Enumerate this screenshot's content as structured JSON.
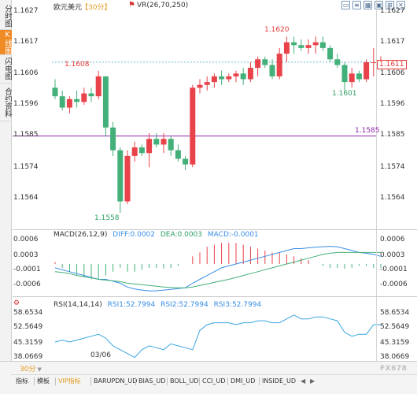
{
  "sidebar": {
    "tabs": [
      {
        "label": "分时图",
        "active": false
      },
      {
        "label": "K线图",
        "active": true
      },
      {
        "label": "闪电图",
        "active": false
      },
      {
        "label": "合约资料",
        "active": false
      }
    ]
  },
  "header": {
    "symbol": "欧元美元",
    "period": "【30分】",
    "vr_icon": "indicator-flag-icon",
    "vr_label": "VR(26,70,250)"
  },
  "window_icons": [
    "window-restore-icon",
    "window-list-icon",
    "window-grid-icon",
    "window-tile-icon",
    "window-more-icon",
    "window-close-icon"
  ],
  "price_axis": {
    "labels": [
      "1.1627",
      "1.1617",
      "1.1606",
      "1.1596",
      "1.1585",
      "1.1574",
      "1.1564"
    ],
    "current_price": "1.1611",
    "level_line": "1.1585",
    "annotations": {
      "high": "1.1620",
      "local_high": "1.1608",
      "local_low": "1.1601",
      "low": "1.1558"
    }
  },
  "macd": {
    "title": "MACD(26,12,9)",
    "diff": "DIFF:0.0002",
    "dea": "DEA:0.0003",
    "macd": "MACD:-0.0001",
    "axis_labels": [
      "0.0006",
      "0.0003",
      "-0.0001",
      "-0.0006"
    ]
  },
  "rsi": {
    "title": "RSI(14,14,14)",
    "rsi1": "RSI1:52.7994",
    "rsi2": "RSI2:52.7994",
    "rsi3": "RSI3:52.7994",
    "axis_labels": [
      "58.6534",
      "52.5649",
      "45.3159",
      "38.0669"
    ],
    "settings_icon": "gear-icon"
  },
  "x_axis": {
    "date_label": "03/06"
  },
  "toolbar": {
    "period_button": "30分",
    "tabs": [
      "指标",
      "模板",
      "VIP指标",
      "BARUPDN_UD",
      "BIAS_UD",
      "BOLL_UD",
      "CCI_UD",
      "DMI_UD",
      "INSIDE_UD"
    ],
    "scroll_icons": [
      "arrow-left-icon",
      "arrow-right-icon"
    ]
  },
  "watermark": "FX678",
  "colors": {
    "up": "#e8424a",
    "down": "#43b07a",
    "accent": "#f08a24",
    "level": "#8e24aa",
    "current": "#3aa0c8"
  },
  "chart_data": [
    {
      "type": "candlestick",
      "title": "",
      "ylim": [
        1.1553,
        1.1629
      ],
      "y_ticks": [
        1.1627,
        1.1617,
        1.1606,
        1.1596,
        1.1585,
        1.1574,
        1.1564
      ],
      "horizontal_lines": [
        {
          "value": 1.1585,
          "label": "1.1585"
        },
        {
          "value": 1.1611,
          "label": "1.1611",
          "style": "dashed"
        }
      ],
      "candles": [
        {
          "o": 1.1602,
          "h": 1.1605,
          "l": 1.1598,
          "c": 1.1599
        },
        {
          "o": 1.1599,
          "h": 1.1601,
          "l": 1.1594,
          "c": 1.1595
        },
        {
          "o": 1.1595,
          "h": 1.1599,
          "l": 1.1593,
          "c": 1.1598
        },
        {
          "o": 1.1598,
          "h": 1.1601,
          "l": 1.1595,
          "c": 1.1597
        },
        {
          "o": 1.1597,
          "h": 1.1602,
          "l": 1.1596,
          "c": 1.16
        },
        {
          "o": 1.16,
          "h": 1.1602,
          "l": 1.1597,
          "c": 1.1599
        },
        {
          "o": 1.1599,
          "h": 1.1608,
          "l": 1.1598,
          "c": 1.1606
        },
        {
          "o": 1.1606,
          "h": 1.1606,
          "l": 1.1585,
          "c": 1.1588
        },
        {
          "o": 1.1588,
          "h": 1.159,
          "l": 1.1578,
          "c": 1.158
        },
        {
          "o": 1.158,
          "h": 1.1581,
          "l": 1.1558,
          "c": 1.1562
        },
        {
          "o": 1.1562,
          "h": 1.158,
          "l": 1.1561,
          "c": 1.1578
        },
        {
          "o": 1.1578,
          "h": 1.1583,
          "l": 1.1576,
          "c": 1.1581
        },
        {
          "o": 1.1581,
          "h": 1.1582,
          "l": 1.1578,
          "c": 1.1579
        },
        {
          "o": 1.1579,
          "h": 1.1586,
          "l": 1.1574,
          "c": 1.1584
        },
        {
          "o": 1.1584,
          "h": 1.1586,
          "l": 1.1581,
          "c": 1.1582
        },
        {
          "o": 1.1582,
          "h": 1.1586,
          "l": 1.1579,
          "c": 1.1584
        },
        {
          "o": 1.1584,
          "h": 1.1585,
          "l": 1.1578,
          "c": 1.158
        },
        {
          "o": 1.158,
          "h": 1.1582,
          "l": 1.1576,
          "c": 1.1577
        },
        {
          "o": 1.1577,
          "h": 1.1578,
          "l": 1.1573,
          "c": 1.1575
        },
        {
          "o": 1.1575,
          "h": 1.1603,
          "l": 1.1574,
          "c": 1.1602
        },
        {
          "o": 1.1602,
          "h": 1.1605,
          "l": 1.16,
          "c": 1.1603
        },
        {
          "o": 1.1603,
          "h": 1.1606,
          "l": 1.1601,
          "c": 1.1604
        },
        {
          "o": 1.1604,
          "h": 1.1607,
          "l": 1.1602,
          "c": 1.1606
        },
        {
          "o": 1.1606,
          "h": 1.1608,
          "l": 1.1603,
          "c": 1.1605
        },
        {
          "o": 1.1605,
          "h": 1.1607,
          "l": 1.1604,
          "c": 1.1606
        },
        {
          "o": 1.1606,
          "h": 1.1608,
          "l": 1.1604,
          "c": 1.1607
        },
        {
          "o": 1.1607,
          "h": 1.1609,
          "l": 1.1603,
          "c": 1.1605
        },
        {
          "o": 1.1605,
          "h": 1.1611,
          "l": 1.1604,
          "c": 1.1609
        },
        {
          "o": 1.1609,
          "h": 1.1613,
          "l": 1.1606,
          "c": 1.1612
        },
        {
          "o": 1.1612,
          "h": 1.1613,
          "l": 1.1609,
          "c": 1.161
        },
        {
          "o": 1.161,
          "h": 1.1612,
          "l": 1.1605,
          "c": 1.1606
        },
        {
          "o": 1.1606,
          "h": 1.1616,
          "l": 1.1605,
          "c": 1.1614
        },
        {
          "o": 1.1614,
          "h": 1.162,
          "l": 1.1611,
          "c": 1.1618
        },
        {
          "o": 1.1618,
          "h": 1.162,
          "l": 1.1614,
          "c": 1.1617
        },
        {
          "o": 1.1617,
          "h": 1.1619,
          "l": 1.1615,
          "c": 1.1616
        },
        {
          "o": 1.1616,
          "h": 1.1619,
          "l": 1.1614,
          "c": 1.1617
        },
        {
          "o": 1.1617,
          "h": 1.162,
          "l": 1.1614,
          "c": 1.1618
        },
        {
          "o": 1.1618,
          "h": 1.162,
          "l": 1.1615,
          "c": 1.1616
        },
        {
          "o": 1.1616,
          "h": 1.1617,
          "l": 1.1611,
          "c": 1.1612
        },
        {
          "o": 1.1612,
          "h": 1.1614,
          "l": 1.1609,
          "c": 1.161
        },
        {
          "o": 1.161,
          "h": 1.1611,
          "l": 1.1601,
          "c": 1.1604
        },
        {
          "o": 1.1604,
          "h": 1.1609,
          "l": 1.1602,
          "c": 1.1607
        },
        {
          "o": 1.1607,
          "h": 1.1608,
          "l": 1.1604,
          "c": 1.1605
        },
        {
          "o": 1.1605,
          "h": 1.1612,
          "l": 1.1604,
          "c": 1.1611
        },
        {
          "o": 1.1611,
          "h": 1.1616,
          "l": 1.1606,
          "c": 1.1611
        },
        {
          "o": 1.1611,
          "h": 1.1613,
          "l": 1.1609,
          "c": 1.1611
        }
      ]
    },
    {
      "type": "bar",
      "title": "MACD(26,12,9)",
      "ylim": [
        -0.0008,
        0.0008
      ],
      "y_ticks": [
        0.0006,
        0.0003,
        -0.0001,
        -0.0006
      ],
      "series": [
        {
          "name": "MACD",
          "values": [
            5e-05,
            -0.0001,
            -0.0002,
            -0.0003,
            -0.00035,
            -0.0004,
            -0.0004,
            -0.0003,
            -0.0002,
            -0.0001,
            -0.0002,
            -0.0002,
            -0.00015,
            -0.0001,
            -0.0001,
            -0.00012,
            -0.0001,
            -5e-05,
            0,
            0.0002,
            0.0003,
            0.00045,
            0.0005,
            0.00055,
            0.00055,
            0.00055,
            0.0005,
            0.00045,
            0.0004,
            0.00035,
            0.0003,
            0.0003,
            0.00025,
            0.0002,
            0.00015,
            0.0001,
            0,
            -5e-05,
            -0.0001,
            -0.0001,
            -0.00012,
            -0.0001,
            -5e-05,
            -5e-05,
            -0.0001,
            -0.0001
          ]
        }
      ]
    },
    {
      "type": "line",
      "title": "MACD(26,12,9)",
      "ylim": [
        -0.0008,
        0.0008
      ],
      "series": [
        {
          "name": "DIFF",
          "values": [
            -0.0001,
            -0.00015,
            -0.0002,
            -0.00025,
            -0.0003,
            -0.00035,
            -0.0004,
            -0.0004,
            -0.00045,
            -0.0005,
            -0.0006,
            -0.00065,
            -0.00068,
            -0.0007,
            -0.0007,
            -0.00068,
            -0.00066,
            -0.00064,
            -0.00062,
            -0.0005,
            -0.0004,
            -0.0003,
            -0.0002,
            -0.0001,
            -5e-05,
            0,
            5e-05,
            0.0001,
            0.00015,
            0.0002,
            0.00025,
            0.0003,
            0.00035,
            0.0004,
            0.0004,
            0.00042,
            0.00044,
            0.00045,
            0.00046,
            0.00045,
            0.0004,
            0.00035,
            0.0003,
            0.00028,
            0.00025,
            0.0002
          ]
        },
        {
          "name": "DEA",
          "values": [
            -0.0002,
            -0.00022,
            -0.00025,
            -0.0003,
            -0.00033,
            -0.00036,
            -0.0004,
            -0.00042,
            -0.00044,
            -0.00046,
            -0.0005,
            -0.00052,
            -0.00054,
            -0.00056,
            -0.00058,
            -0.0006,
            -0.00061,
            -0.00062,
            -0.00062,
            -0.0006,
            -0.00056,
            -0.00052,
            -0.00048,
            -0.00044,
            -0.0004,
            -0.00035,
            -0.0003,
            -0.00025,
            -0.0002,
            -0.00015,
            -0.0001,
            -5e-05,
            0,
            5e-05,
            0.0001,
            0.00015,
            0.0002,
            0.00025,
            0.00028,
            0.0003,
            0.0003,
            0.0003,
            0.0003,
            0.0003,
            0.0003,
            0.0003
          ]
        }
      ]
    },
    {
      "type": "line",
      "title": "RSI(14,14,14)",
      "ylim": [
        35,
        62
      ],
      "y_ticks": [
        58.6534,
        52.5649,
        45.3159,
        38.0669
      ],
      "series": [
        {
          "name": "RSI1",
          "values": [
            44,
            45,
            44,
            45,
            46,
            47,
            48,
            46,
            42,
            40,
            38,
            36,
            40,
            42,
            41,
            40,
            43,
            42,
            41,
            40,
            50,
            53,
            54,
            54,
            54,
            53,
            54,
            54,
            55,
            55,
            54,
            54,
            56,
            58,
            56,
            56,
            57,
            57,
            56,
            55,
            49,
            47,
            48,
            48,
            53,
            53
          ]
        }
      ]
    }
  ]
}
